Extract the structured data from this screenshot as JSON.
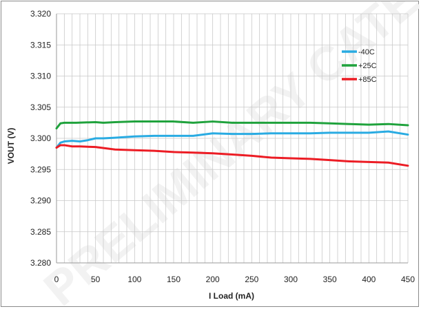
{
  "chart_data": {
    "type": "line",
    "title": "",
    "xlabel": "I Load (mA)",
    "ylabel": "VOUT (V)",
    "xlim": [
      0,
      450
    ],
    "ylim": [
      3.28,
      3.32
    ],
    "x_ticks": [
      "0",
      "50",
      "100",
      "150",
      "200",
      "250",
      "300",
      "350",
      "400",
      "450"
    ],
    "y_ticks": [
      "3.280",
      "3.285",
      "3.290",
      "3.295",
      "3.300",
      "3.305",
      "3.310",
      "3.315",
      "3.320"
    ],
    "grid": true,
    "legend_position": "top-right",
    "series": [
      {
        "name": "-40C",
        "color": "#29abe2",
        "x": [
          0,
          5,
          10,
          20,
          30,
          40,
          50,
          60,
          75,
          100,
          125,
          150,
          175,
          200,
          225,
          250,
          275,
          300,
          325,
          350,
          375,
          400,
          425,
          450
        ],
        "y": [
          3.2985,
          3.2993,
          3.2995,
          3.2996,
          3.2995,
          3.2997,
          3.3,
          3.3,
          3.3001,
          3.3003,
          3.3004,
          3.3004,
          3.3004,
          3.3008,
          3.3007,
          3.3007,
          3.3008,
          3.3008,
          3.3008,
          3.3009,
          3.3009,
          3.3009,
          3.3011,
          3.3006
        ]
      },
      {
        "name": "+25C",
        "color": "#1fa23c",
        "x": [
          0,
          5,
          10,
          25,
          50,
          60,
          75,
          100,
          125,
          150,
          175,
          200,
          225,
          250,
          275,
          300,
          325,
          350,
          375,
          400,
          425,
          450
        ],
        "y": [
          3.3016,
          3.3024,
          3.3025,
          3.3025,
          3.3026,
          3.3025,
          3.3026,
          3.3027,
          3.3027,
          3.3027,
          3.3025,
          3.3027,
          3.3025,
          3.3025,
          3.3025,
          3.3025,
          3.3025,
          3.3024,
          3.3023,
          3.3022,
          3.3023,
          3.3021
        ]
      },
      {
        "name": "+85C",
        "color": "#ec1c24",
        "x": [
          0,
          5,
          10,
          20,
          30,
          50,
          75,
          100,
          125,
          150,
          175,
          200,
          225,
          250,
          275,
          300,
          325,
          350,
          375,
          400,
          425,
          450
        ],
        "y": [
          3.2985,
          3.2989,
          3.2989,
          3.2987,
          3.2987,
          3.2986,
          3.2982,
          3.2981,
          3.298,
          3.2978,
          3.2977,
          3.2976,
          3.2974,
          3.2972,
          3.2969,
          3.2968,
          3.2967,
          3.2965,
          3.2963,
          3.2962,
          3.2961,
          3.2956
        ]
      }
    ]
  },
  "watermark": "PRELIMINARY CATE... FOR"
}
